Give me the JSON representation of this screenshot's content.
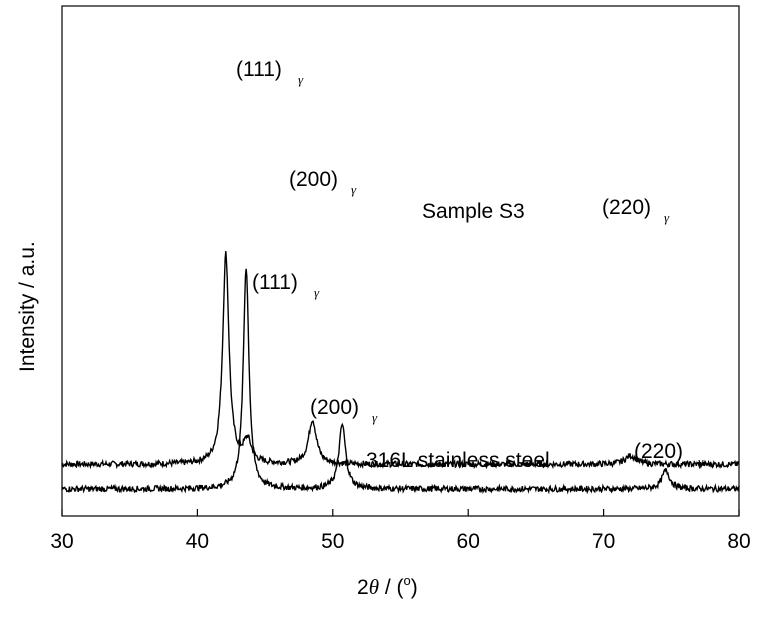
{
  "chart_data": {
    "type": "line",
    "xlabel_prefix": "2",
    "xlabel_symbol": "θ",
    "xlabel_unit": " / (",
    "xlabel_sup": "o",
    "xlabel_close": ")",
    "ylabel": "Intensity / a.u.",
    "xlim": [
      30,
      80
    ],
    "x_ticks": [
      30,
      40,
      50,
      60,
      70,
      80
    ],
    "y_ticks_shown": false,
    "grid": false,
    "legend": "none",
    "series": [
      {
        "name": "Sample S3",
        "baseline": 1.0,
        "noise": 0.03,
        "peaks": [
          {
            "x": 42.1,
            "height": 8.5,
            "width": 0.28,
            "label": "(111)",
            "sub": "γ"
          },
          {
            "x": 43.7,
            "height": 0.9,
            "width": 0.35
          },
          {
            "x": 48.5,
            "height": 1.8,
            "width": 0.35,
            "label": "(200)",
            "sub": "γ"
          },
          {
            "x": 72.0,
            "height": 0.35,
            "width": 0.5,
            "label": "(220)",
            "sub": "γ"
          }
        ]
      },
      {
        "name": "316L stainless steel",
        "baseline": 0.0,
        "noise": 0.03,
        "peaks": [
          {
            "x": 43.6,
            "height": 9.0,
            "width": 0.25,
            "label": "(111)",
            "sub": "γ"
          },
          {
            "x": 50.7,
            "height": 2.6,
            "width": 0.3,
            "label": "(200)",
            "sub": "γ"
          },
          {
            "x": 74.6,
            "height": 0.75,
            "width": 0.35,
            "label": "(220)",
            "sub": "γ"
          }
        ]
      }
    ]
  }
}
